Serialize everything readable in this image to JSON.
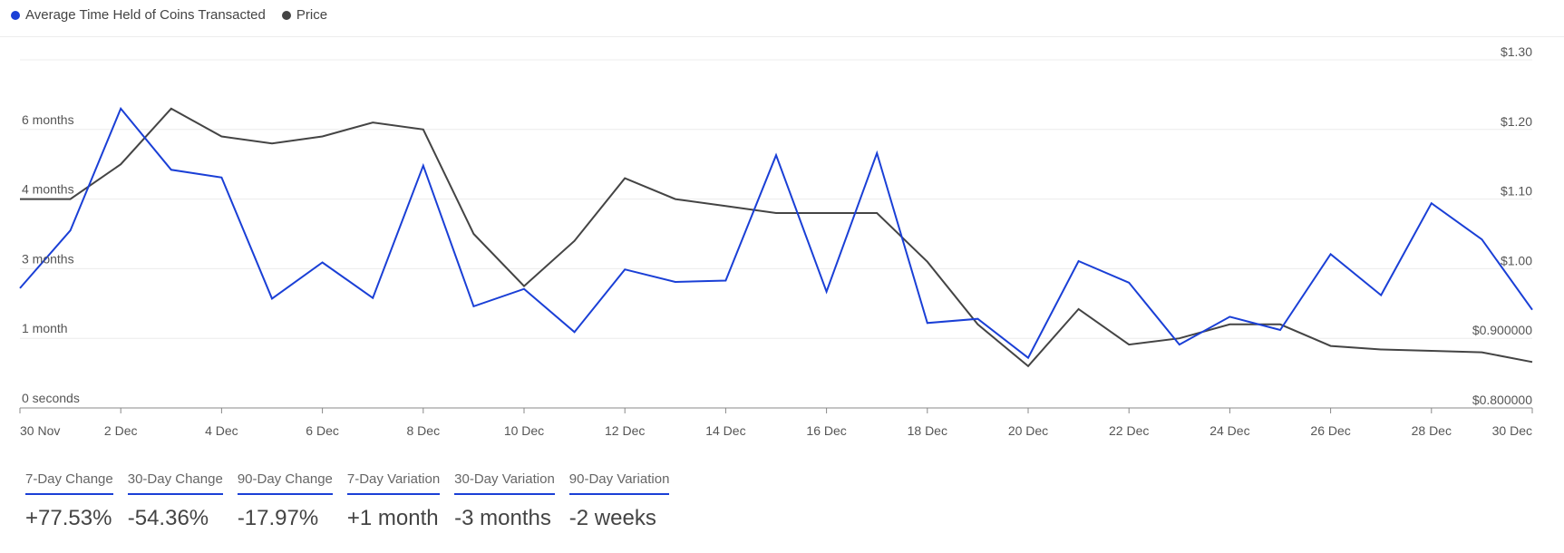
{
  "legend": {
    "series1": {
      "label": "Average Time Held of Coins Transacted",
      "color": "#1a3fd6"
    },
    "series2": {
      "label": "Price",
      "color": "#444444"
    }
  },
  "chart_data": {
    "type": "line",
    "x": [
      "30 Nov",
      "1 Dec",
      "2 Dec",
      "3 Dec",
      "4 Dec",
      "5 Dec",
      "6 Dec",
      "7 Dec",
      "8 Dec",
      "9 Dec",
      "10 Dec",
      "11 Dec",
      "12 Dec",
      "13 Dec",
      "14 Dec",
      "15 Dec",
      "16 Dec",
      "17 Dec",
      "18 Dec",
      "19 Dec",
      "20 Dec",
      "21 Dec",
      "22 Dec",
      "23 Dec",
      "24 Dec",
      "25 Dec",
      "26 Dec",
      "27 Dec",
      "28 Dec",
      "29 Dec",
      "30 Dec"
    ],
    "x_tick_labels": [
      "30 Nov",
      "2 Dec",
      "4 Dec",
      "6 Dec",
      "8 Dec",
      "10 Dec",
      "12 Dec",
      "14 Dec",
      "16 Dec",
      "18 Dec",
      "20 Dec",
      "22 Dec",
      "24 Dec",
      "26 Dec",
      "28 Dec",
      "30 Dec"
    ],
    "left_axis": {
      "tick_labels": [
        "0 seconds",
        "1 month",
        "3 months",
        "4 months",
        "6 months"
      ],
      "tick_levels": [
        0,
        1,
        2,
        3,
        4
      ],
      "range": [
        0,
        5
      ]
    },
    "right_axis": {
      "tick_labels": [
        "$0.800000",
        "$0.900000",
        "$1.00",
        "$1.10",
        "$1.20",
        "$1.30"
      ],
      "tick_values": [
        0.8,
        0.9,
        1.0,
        1.1,
        1.2,
        1.3
      ],
      "range": [
        0.8,
        1.3
      ]
    },
    "series": [
      {
        "name": "Average Time Held of Coins Transacted",
        "axis": "left",
        "color": "#1a3fd6",
        "values": [
          1.72,
          2.55,
          4.3,
          3.42,
          3.31,
          1.57,
          2.09,
          1.58,
          3.48,
          1.46,
          1.71,
          1.09,
          1.99,
          1.81,
          1.83,
          3.63,
          1.67,
          3.66,
          1.22,
          1.28,
          0.72,
          2.11,
          1.8,
          0.91,
          1.31,
          1.12,
          2.21,
          1.62,
          2.94,
          2.42,
          1.41
        ]
      },
      {
        "name": "Price",
        "axis": "right",
        "color": "#444444",
        "values": [
          1.1,
          1.1,
          1.15,
          1.23,
          1.19,
          1.18,
          1.19,
          1.21,
          1.2,
          1.05,
          0.975,
          1.04,
          1.13,
          1.1,
          1.09,
          1.08,
          1.08,
          1.08,
          1.01,
          0.92,
          0.86,
          0.942,
          0.891,
          0.9,
          0.92,
          0.92,
          0.889,
          0.884,
          0.882,
          0.88,
          0.866
        ]
      }
    ],
    "grid": true,
    "legend_position": "top-left"
  },
  "stats": [
    {
      "label": "7-Day Change",
      "value": "+77.53%"
    },
    {
      "label": "30-Day Change",
      "value": "-54.36%"
    },
    {
      "label": "90-Day Change",
      "value": "-17.97%"
    },
    {
      "label": "7-Day Variation",
      "value": "+1 month"
    },
    {
      "label": "30-Day Variation",
      "value": "-3 months"
    },
    {
      "label": "90-Day Variation",
      "value": "-2 weeks"
    }
  ]
}
